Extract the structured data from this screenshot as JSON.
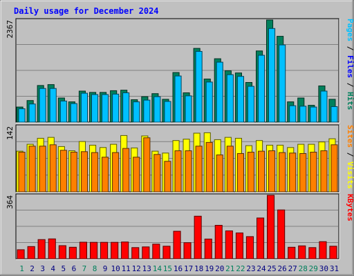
{
  "title": "Daily usage for December 2024",
  "colors": {
    "background": "#c0c0c0",
    "title": "#0000ff",
    "grid": "#7f7f7f",
    "hits": "#00805c",
    "files": "#00c0ff",
    "sites": "#ff8000",
    "visits": "#ffff00",
    "kbytes": "#ff0000",
    "weekend_day": "#00805c",
    "weekday": "#000080"
  },
  "chart_data": [
    {
      "type": "bar",
      "panel": "hits-files",
      "categories": [
        "1",
        "2",
        "3",
        "4",
        "5",
        "6",
        "7",
        "8",
        "9",
        "10",
        "11",
        "12",
        "13",
        "14",
        "15",
        "16",
        "17",
        "18",
        "19",
        "20",
        "21",
        "22",
        "23",
        "24",
        "25",
        "26",
        "27",
        "28",
        "29",
        "30",
        "31"
      ],
      "ymax_label": "2367",
      "ylim": [
        0,
        2367
      ],
      "legend": [
        {
          "name": "Pages",
          "color": "#00c0ff"
        },
        {
          "name": "Files",
          "color": "#0000ff"
        },
        {
          "name": "Hits",
          "color": "#00805c"
        }
      ],
      "series": [
        {
          "name": "Hits",
          "values": [
            350,
            500,
            850,
            870,
            560,
            470,
            720,
            690,
            690,
            730,
            740,
            520,
            590,
            660,
            530,
            1150,
            680,
            1710,
            1000,
            1470,
            1190,
            1140,
            920,
            1650,
            2367,
            1990,
            470,
            560,
            390,
            840,
            530
          ]
        },
        {
          "name": "Files",
          "values": [
            310,
            420,
            780,
            780,
            490,
            430,
            670,
            640,
            640,
            650,
            680,
            470,
            510,
            590,
            480,
            1070,
            610,
            1640,
            930,
            1390,
            1100,
            1060,
            830,
            1550,
            2170,
            1790,
            380,
            370,
            350,
            720,
            360
          ]
        }
      ]
    },
    {
      "type": "bar",
      "panel": "sites-visits",
      "categories": [
        "1",
        "2",
        "3",
        "4",
        "5",
        "6",
        "7",
        "8",
        "9",
        "10",
        "11",
        "12",
        "13",
        "14",
        "15",
        "16",
        "17",
        "18",
        "19",
        "20",
        "21",
        "22",
        "23",
        "24",
        "25",
        "26",
        "27",
        "28",
        "29",
        "30",
        "31"
      ],
      "ymax_label": "142",
      "ylim": [
        0,
        142
      ],
      "legend": [
        {
          "name": "Sites",
          "color": "#ff8000"
        },
        {
          "name": "Visits",
          "color": "#ffff00"
        }
      ],
      "series": [
        {
          "name": "Visits",
          "values": [
            88,
            103,
            116,
            118,
            98,
            89,
            109,
            101,
            96,
            103,
            122,
            95,
            121,
            88,
            84,
            111,
            114,
            127,
            128,
            113,
            118,
            116,
            100,
            111,
            101,
            101,
            96,
            103,
            103,
            108,
            115
          ]
        },
        {
          "name": "Sites",
          "values": [
            86,
            99,
            99,
            102,
            90,
            86,
            87,
            85,
            75,
            85,
            94,
            75,
            117,
            81,
            66,
            89,
            89,
            99,
            107,
            80,
            99,
            83,
            86,
            88,
            89,
            85,
            84,
            83,
            86,
            89,
            102
          ]
        }
      ]
    },
    {
      "type": "bar",
      "panel": "kbytes",
      "categories": [
        "1",
        "2",
        "3",
        "4",
        "5",
        "6",
        "7",
        "8",
        "9",
        "10",
        "11",
        "12",
        "13",
        "14",
        "15",
        "16",
        "17",
        "18",
        "19",
        "20",
        "21",
        "22",
        "23",
        "24",
        "25",
        "26",
        "27",
        "28",
        "29",
        "30",
        "31"
      ],
      "ymax_label": "364",
      "ylim": [
        0,
        364
      ],
      "legend": [
        {
          "name": "KBytes",
          "color": "#ff0000"
        }
      ],
      "series": [
        {
          "name": "KBytes",
          "values": [
            52,
            70,
            110,
            114,
            75,
            66,
            95,
            94,
            94,
            94,
            96,
            64,
            68,
            84,
            72,
            158,
            92,
            244,
            113,
            192,
            160,
            148,
            127,
            234,
            364,
            280,
            66,
            74,
            64,
            98,
            72
          ]
        }
      ]
    }
  ]
}
